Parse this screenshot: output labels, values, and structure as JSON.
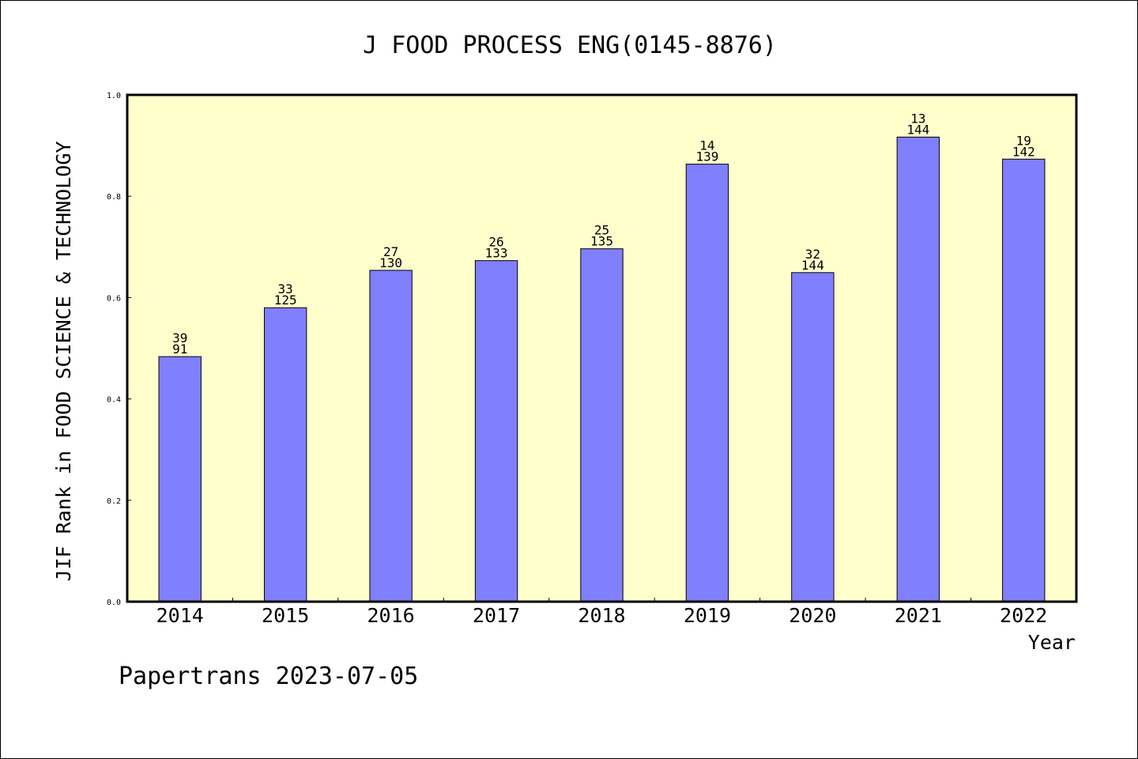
{
  "chart_data": {
    "type": "bar",
    "title": "J FOOD PROCESS ENG(0145-8876)",
    "xlabel": "Year",
    "ylabel": "JIF Rank in FOOD SCIENCE & TECHNOLOGY",
    "categories": [
      "2014",
      "2015",
      "2016",
      "2017",
      "2018",
      "2019",
      "2020",
      "2021",
      "2022"
    ],
    "values": [
      0.4835,
      0.58,
      0.6538,
      0.6729,
      0.6963,
      0.8633,
      0.6493,
      0.9167,
      0.8732
    ],
    "rank": [
      "39",
      "33",
      "27",
      "26",
      "25",
      "14",
      "32",
      "13",
      "19"
    ],
    "total": [
      "91",
      "125",
      "130",
      "133",
      "135",
      "139",
      "144",
      "144",
      "142"
    ],
    "ylim": [
      0,
      1.0
    ],
    "yticks": [
      "0.0",
      "0.2",
      "0.4",
      "0.6",
      "0.8",
      "1.0"
    ],
    "grid": false,
    "legend": "none",
    "colors": {
      "bar_fill": "#8080ff",
      "plot_background": "#ffffcc",
      "axis": "#000000"
    }
  },
  "footer": {
    "source": "Papertrans 2023-07-05"
  }
}
